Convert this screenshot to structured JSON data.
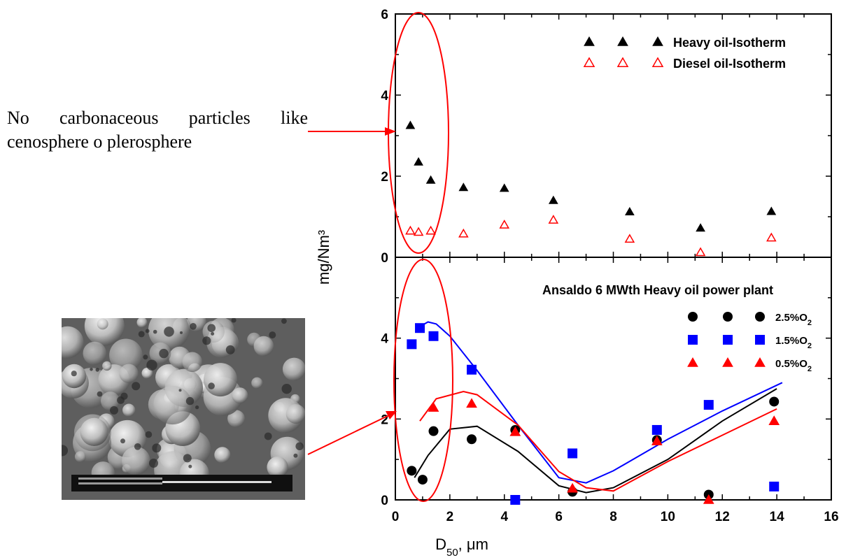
{
  "annotation": {
    "line1": "No carbonaceous particles like",
    "line2": "cenosphere o plerosphere"
  },
  "sem_image": {
    "description_icon": "sem-micrograph"
  },
  "colors": {
    "black": "#000000",
    "blue": "#0000ff",
    "red": "#ff0000"
  },
  "chart_data": [
    {
      "type": "scatter",
      "panel": "top",
      "ylabel": "mg/Nm³",
      "ylim": [
        0,
        6
      ],
      "xlim": [
        0,
        16
      ],
      "yticks": [
        "0",
        "2",
        "4",
        "6"
      ],
      "legend_placement": "top-right",
      "series": [
        {
          "name": "Heavy oil-Isotherm",
          "marker": "filled-triangle",
          "color": "#000000",
          "x": [
            0.55,
            0.85,
            1.3,
            2.5,
            4.0,
            5.8,
            8.6,
            11.2,
            13.8
          ],
          "y": [
            3.25,
            2.35,
            1.9,
            1.72,
            1.7,
            1.4,
            1.12,
            0.72,
            1.13
          ]
        },
        {
          "name": "Diesel oil-Isotherm",
          "marker": "open-triangle",
          "color": "#ff0000",
          "x": [
            0.55,
            0.85,
            1.3,
            2.5,
            4.0,
            5.8,
            8.6,
            11.2,
            13.8
          ],
          "y": [
            0.65,
            0.62,
            0.65,
            0.58,
            0.8,
            0.92,
            0.45,
            0.12,
            0.48
          ]
        }
      ]
    },
    {
      "type": "scatter",
      "panel": "bottom",
      "title": "Ansaldo  6 MWth Heavy oil power plant",
      "xlabel": "D50, μm",
      "ylim": [
        0,
        6
      ],
      "xlim": [
        0,
        16
      ],
      "xticks": [
        "0",
        "2",
        "4",
        "6",
        "8",
        "10",
        "12",
        "14",
        "16"
      ],
      "yticks": [
        "0",
        "2",
        "4"
      ],
      "legend_placement": "right",
      "series": [
        {
          "name": "2.5%O2",
          "marker": "circle",
          "color": "#000000",
          "x": [
            0.6,
            1.0,
            1.4,
            2.8,
            4.4,
            6.5,
            9.6,
            11.5,
            13.9
          ],
          "y": [
            0.72,
            0.5,
            1.7,
            1.5,
            1.73,
            0.2,
            1.48,
            0.13,
            2.43
          ],
          "fit_x": [
            0.7,
            1.2,
            2.0,
            3.0,
            4.5,
            6.0,
            7.0,
            8.0,
            10.0,
            12.0,
            14.0
          ],
          "fit_y": [
            0.55,
            1.1,
            1.75,
            1.82,
            1.2,
            0.35,
            0.18,
            0.3,
            1.0,
            1.95,
            2.75
          ]
        },
        {
          "name": "1.5%O2",
          "marker": "square",
          "color": "#0000ff",
          "x": [
            0.6,
            0.9,
            1.4,
            2.8,
            4.4,
            6.5,
            9.6,
            11.5,
            13.9
          ],
          "y": [
            3.85,
            4.25,
            4.05,
            3.22,
            0.0,
            1.15,
            1.73,
            2.35,
            0.33
          ],
          "fit_x": [
            0.8,
            1.2,
            1.5,
            2.0,
            3.0,
            4.5,
            6.0,
            7.0,
            8.0,
            10.0,
            12.0,
            14.2
          ],
          "fit_y": [
            4.25,
            4.4,
            4.35,
            4.05,
            3.2,
            1.85,
            0.55,
            0.42,
            0.72,
            1.5,
            2.2,
            2.9
          ]
        },
        {
          "name": "0.5%O2",
          "marker": "filled-triangle",
          "color": "#ff0000",
          "x": [
            1.4,
            2.8,
            4.4,
            6.5,
            9.6,
            11.5,
            13.9
          ],
          "y": [
            2.28,
            2.38,
            1.68,
            0.28,
            1.45,
            0.0,
            1.95
          ],
          "fit_x": [
            0.9,
            1.5,
            2.5,
            3.0,
            4.5,
            6.0,
            7.0,
            8.0,
            10.0,
            12.0,
            14.0
          ],
          "fit_y": [
            1.95,
            2.5,
            2.68,
            2.6,
            1.85,
            0.7,
            0.3,
            0.22,
            0.95,
            1.6,
            2.25
          ]
        }
      ]
    }
  ]
}
